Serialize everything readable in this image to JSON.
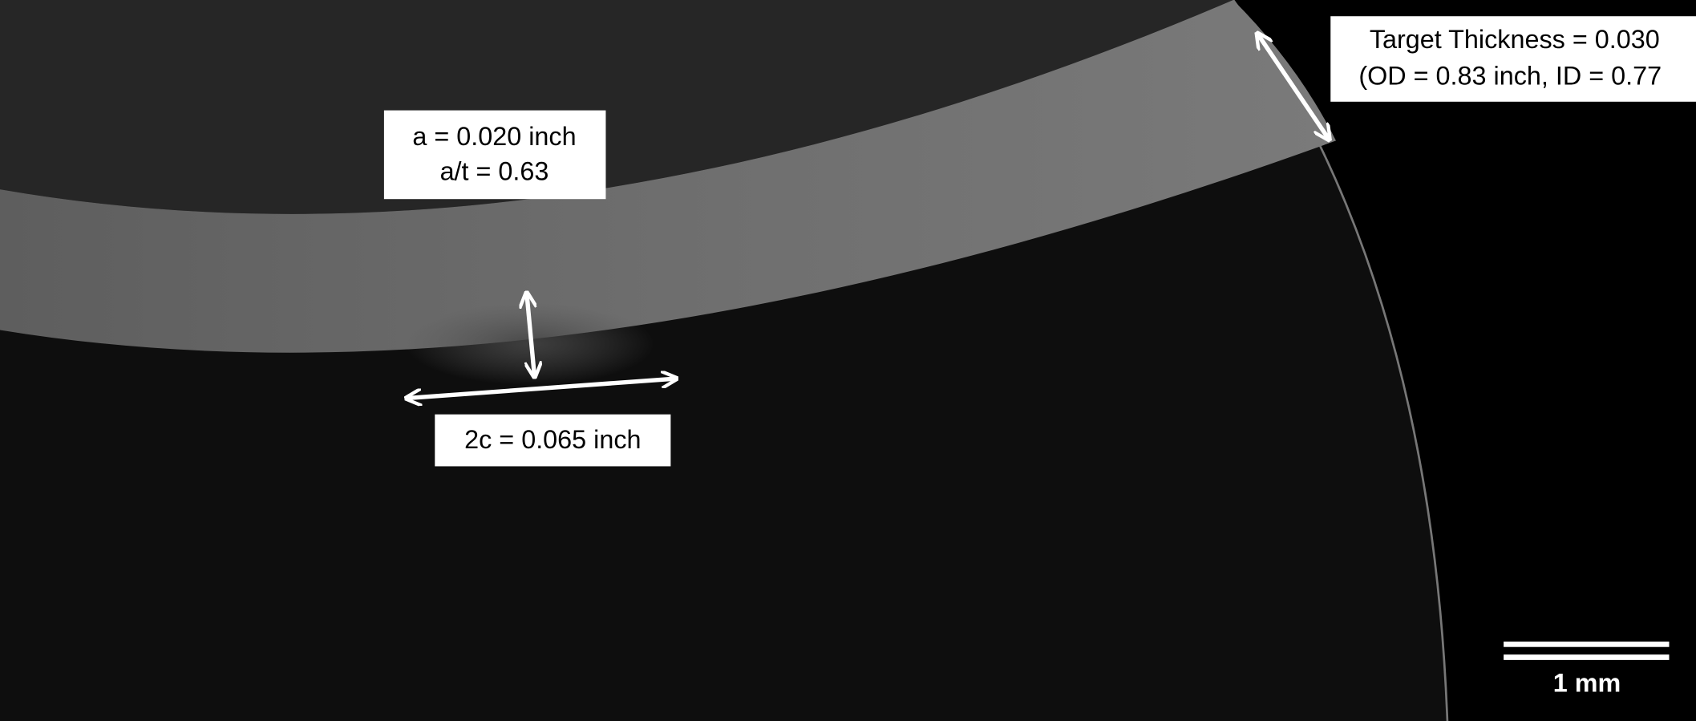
{
  "labels": {
    "depth": [
      "a = 0.020 inch",
      "a/t = 0.63"
    ],
    "length": "2c = 0.065 inch",
    "thickness": [
      "Target Thickness = 0.030",
      "(OD = 0.83 inch, ID = 0.77"
    ]
  },
  "scale_bar": {
    "label": "1 mm"
  }
}
